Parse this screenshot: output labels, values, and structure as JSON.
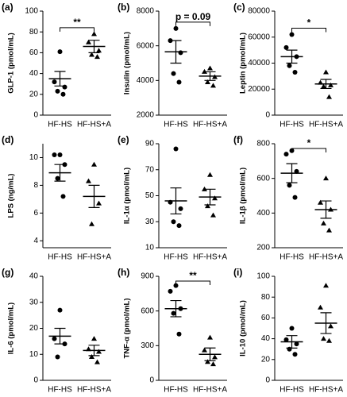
{
  "chart_data": [
    {
      "type": "dot",
      "label": "(a)",
      "ylabel": "GLP-1 (pmol/mL)",
      "categories": [
        "HF-HS",
        "HF-HS+A"
      ],
      "ylim": [
        0,
        100
      ],
      "yticks": [
        0,
        20,
        40,
        60,
        80,
        100
      ],
      "annotation": "**",
      "groups": [
        {
          "marker": "circle",
          "color": "#000000",
          "points": [
            61,
            32,
            27,
            23,
            20
          ],
          "mean": 35,
          "sem": 7
        },
        {
          "marker": "triangle",
          "color": "#000000",
          "points": [
            78,
            70,
            62,
            58,
            56
          ],
          "mean": 66,
          "sem": 6
        }
      ]
    },
    {
      "type": "dot",
      "label": "(b)",
      "ylabel": "Insulin (pmol/mL)",
      "categories": [
        "HF-HS",
        "HF-HS+A"
      ],
      "ylim": [
        2000,
        8000
      ],
      "yticks": [
        2000,
        4000,
        6000,
        8000
      ],
      "annotation": "p = 0.09",
      "groups": [
        {
          "marker": "circle",
          "color": "#000000",
          "points": [
            7000,
            6300,
            5600,
            4400,
            3900
          ],
          "mean": 5650,
          "sem": 650
        },
        {
          "marker": "triangle",
          "color": "#000000",
          "points": [
            4700,
            4500,
            4200,
            3900,
            3700
          ],
          "mean": 4250,
          "sem": 250
        }
      ]
    },
    {
      "type": "dot",
      "label": "(c)",
      "ylabel": "Leptin (pmol/mL)",
      "categories": [
        "HF-HS",
        "HF-HS+A"
      ],
      "ylim": [
        0,
        80000
      ],
      "yticks": [
        0,
        20000,
        40000,
        60000,
        80000
      ],
      "annotation": "*",
      "groups": [
        {
          "marker": "circle",
          "color": "#000000",
          "points": [
            62000,
            52000,
            45000,
            38000,
            33000
          ],
          "mean": 45000,
          "sem": 5000
        },
        {
          "marker": "triangle",
          "color": "#000000",
          "points": [
            33000,
            25000,
            23000,
            22000,
            14000
          ],
          "mean": 24000,
          "sem": 3500
        }
      ]
    },
    {
      "type": "dot",
      "label": "(d)",
      "ylabel": "LPS (ng/mL)",
      "categories": [
        "HF-HS",
        "HF-HS+A"
      ],
      "ylim": [
        3.5,
        11
      ],
      "yticks": [
        4,
        6,
        8,
        10
      ],
      "groups": [
        {
          "marker": "circle",
          "color": "#000000",
          "points": [
            10.2,
            10.2,
            9.5,
            8.5,
            7.2
          ],
          "mean": 8.9,
          "sem": 0.6
        },
        {
          "marker": "triangle",
          "color": "#000000",
          "points": [
            9.5,
            8.3,
            6.7,
            5.2
          ],
          "mean": 7.2,
          "sem": 0.8
        }
      ]
    },
    {
      "type": "dot",
      "label": "(e)",
      "ylabel": "IL-1α (pmol/mL)",
      "categories": [
        "HF-HS",
        "HF-HS+A"
      ],
      "ylim": [
        10,
        90
      ],
      "yticks": [
        10,
        30,
        50,
        70,
        90
      ],
      "groups": [
        {
          "marker": "circle",
          "color": "#000000",
          "points": [
            86,
            45,
            40,
            30,
            27
          ],
          "mean": 46,
          "sem": 10
        },
        {
          "marker": "triangle",
          "color": "#000000",
          "points": [
            66,
            55,
            48,
            42,
            35
          ],
          "mean": 49,
          "sem": 6
        }
      ]
    },
    {
      "type": "dot",
      "label": "(f)",
      "ylabel": "IL-1β (pmol/mL)",
      "categories": [
        "HF-HS",
        "HF-HS+A"
      ],
      "ylim": [
        200,
        800
      ],
      "yticks": [
        200,
        400,
        600,
        800
      ],
      "annotation": "*",
      "groups": [
        {
          "marker": "circle",
          "color": "#000000",
          "points": [
            760,
            740,
            640,
            560,
            490
          ],
          "mean": 630,
          "sem": 55
        },
        {
          "marker": "triangle",
          "color": "#000000",
          "points": [
            600,
            460,
            420,
            340,
            300
          ],
          "mean": 420,
          "sem": 50
        }
      ]
    },
    {
      "type": "dot",
      "label": "(g)",
      "ylabel": "IL-6 (pmol/mL)",
      "categories": [
        "HF-HS",
        "HF-HS+A"
      ],
      "ylim": [
        0,
        40
      ],
      "yticks": [
        0,
        10,
        20,
        30,
        40
      ],
      "groups": [
        {
          "marker": "circle",
          "color": "#000000",
          "points": [
            27,
            16,
            14,
            9
          ],
          "mean": 17,
          "sem": 3
        },
        {
          "marker": "triangle",
          "color": "#000000",
          "points": [
            16,
            12,
            11,
            9,
            7
          ],
          "mean": 11.5,
          "sem": 2
        }
      ]
    },
    {
      "type": "dot",
      "label": "(h)",
      "ylabel": "TNF-α (pmol/mL)",
      "categories": [
        "HF-HS",
        "HF-HS+A"
      ],
      "ylim": [
        0,
        900
      ],
      "yticks": [
        0,
        300,
        600,
        900
      ],
      "annotation": "**",
      "groups": [
        {
          "marker": "circle",
          "color": "#000000",
          "points": [
            820,
            770,
            620,
            580,
            400
          ],
          "mean": 620,
          "sem": 70
        },
        {
          "marker": "triangle",
          "color": "#000000",
          "points": [
            370,
            260,
            200,
            160,
            140
          ],
          "mean": 225,
          "sem": 55
        }
      ]
    },
    {
      "type": "dot",
      "label": "(i)",
      "ylabel": "IL-10 (pmol/mL)",
      "categories": [
        "HF-HS",
        "HF-HS+A"
      ],
      "ylim": [
        0,
        100
      ],
      "yticks": [
        0,
        20,
        40,
        60,
        80,
        100
      ],
      "groups": [
        {
          "marker": "circle",
          "color": "#000000",
          "points": [
            50,
            39,
            35,
            30,
            25
          ],
          "mean": 37,
          "sem": 6
        },
        {
          "marker": "triangle",
          "color": "#000000",
          "points": [
            91,
            70,
            52,
            40,
            38
          ],
          "mean": 55,
          "sem": 10
        }
      ]
    }
  ]
}
